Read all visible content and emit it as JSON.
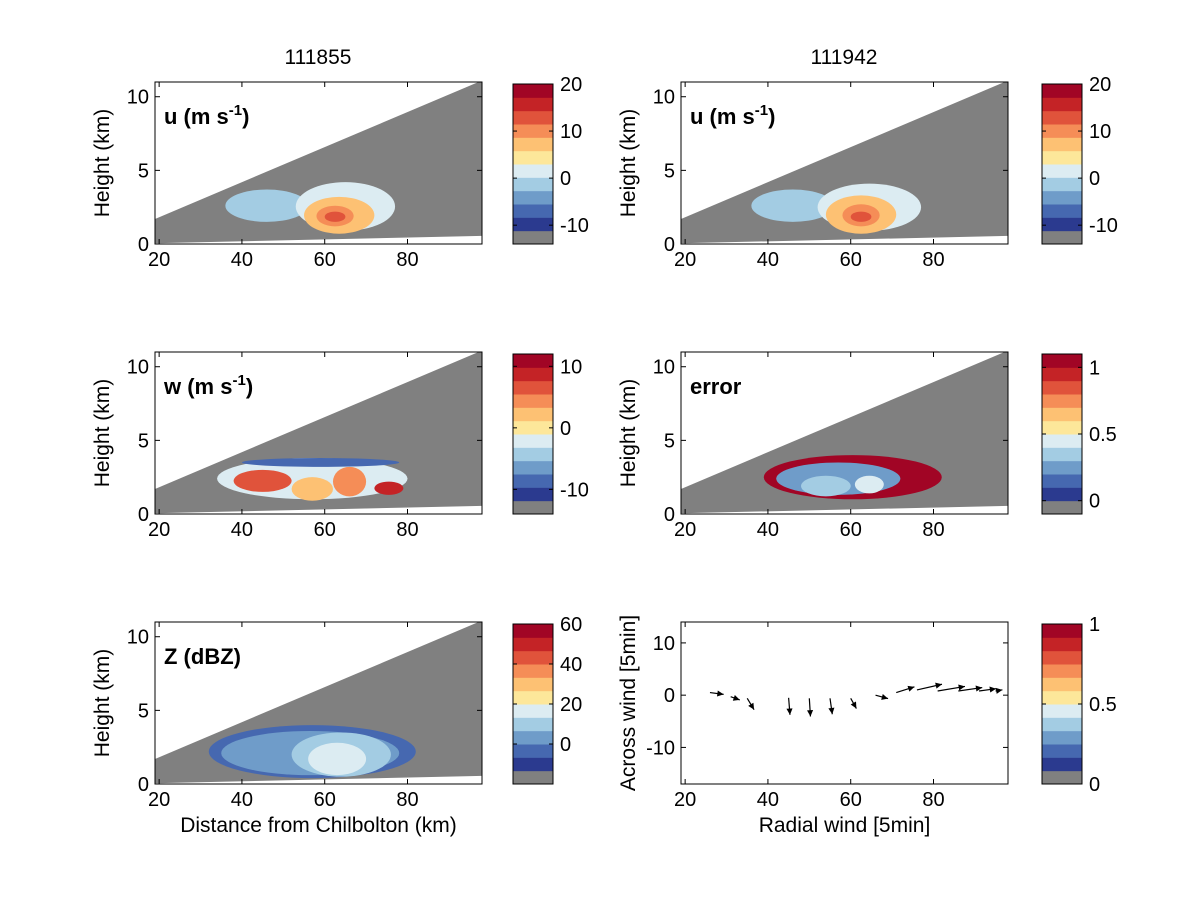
{
  "column_titles": [
    "111855",
    "111942"
  ],
  "colors": {
    "cmap": [
      "#808080",
      "#2b3a8f",
      "#4668b0",
      "#6f9cc9",
      "#a3cce3",
      "#dcecf2",
      "#fde79a",
      "#fdc173",
      "#f58d57",
      "#e0533b",
      "#c42326",
      "#a10525"
    ],
    "missing": "#808080"
  },
  "chart_data": [
    {
      "id": "u-111855",
      "type": "heatmap",
      "title": "111855",
      "label": "u (m s",
      "label_sup": "-1",
      "label_tail": ")",
      "ylabel": "Height (km)",
      "xlabel": "",
      "xticks": [
        "20",
        "40",
        "60",
        "80"
      ],
      "yticks": [
        "0",
        "5",
        "10"
      ],
      "xlim": [
        19,
        98
      ],
      "ylim": [
        0,
        11
      ],
      "colorbar": {
        "ticks": [
          "20",
          "10",
          "0",
          "-10"
        ],
        "range": [
          -14,
          20
        ]
      },
      "fields": [
        {
          "x": [
            36,
            56
          ],
          "y": [
            1.5,
            3.7
          ],
          "level": 4
        },
        {
          "x": [
            53,
            77
          ],
          "y": [
            0.9,
            4.2
          ],
          "level": 5
        },
        {
          "x": [
            55,
            72
          ],
          "y": [
            0.7,
            3.2
          ],
          "level": 7
        },
        {
          "x": [
            58,
            67
          ],
          "y": [
            1.2,
            2.6
          ],
          "level": 8
        },
        {
          "x": [
            60,
            65
          ],
          "y": [
            1.5,
            2.2
          ],
          "level": 9
        }
      ]
    },
    {
      "id": "u-111942",
      "type": "heatmap",
      "title": "111942",
      "label": "u (m s",
      "label_sup": "-1",
      "label_tail": ")",
      "ylabel": "Height (km)",
      "xlabel": "",
      "xticks": [
        "20",
        "40",
        "60",
        "80"
      ],
      "yticks": [
        "0",
        "5",
        "10"
      ],
      "xlim": [
        19,
        98
      ],
      "ylim": [
        0,
        11
      ],
      "colorbar": {
        "ticks": [
          "20",
          "10",
          "0",
          "-10"
        ],
        "range": [
          -14,
          20
        ]
      },
      "fields": [
        {
          "x": [
            36,
            56
          ],
          "y": [
            1.5,
            3.7
          ],
          "level": 4
        },
        {
          "x": [
            52,
            77
          ],
          "y": [
            0.9,
            4.1
          ],
          "level": 5
        },
        {
          "x": [
            54,
            71
          ],
          "y": [
            0.7,
            3.3
          ],
          "level": 7
        },
        {
          "x": [
            58,
            67
          ],
          "y": [
            1.2,
            2.7
          ],
          "level": 8
        },
        {
          "x": [
            60,
            65
          ],
          "y": [
            1.5,
            2.2
          ],
          "level": 9
        }
      ]
    },
    {
      "id": "w-111855",
      "type": "heatmap",
      "title": "",
      "label": "w (m s",
      "label_sup": "-1",
      "label_tail": ")",
      "ylabel": "Height (km)",
      "xlabel": "",
      "xticks": [
        "20",
        "40",
        "60",
        "80"
      ],
      "yticks": [
        "0",
        "5",
        "10"
      ],
      "xlim": [
        19,
        98
      ],
      "ylim": [
        0,
        11
      ],
      "colorbar": {
        "ticks": [
          "10",
          "0",
          "-10"
        ],
        "range": [
          -14,
          12
        ]
      },
      "fields": [
        {
          "x": [
            34,
            80
          ],
          "y": [
            1.0,
            3.8
          ],
          "level": 5
        },
        {
          "x": [
            38,
            52
          ],
          "y": [
            1.5,
            3.0
          ],
          "level": 9
        },
        {
          "x": [
            52,
            62
          ],
          "y": [
            0.9,
            2.5
          ],
          "level": 7
        },
        {
          "x": [
            62,
            70
          ],
          "y": [
            1.2,
            3.2
          ],
          "level": 8
        },
        {
          "x": [
            40,
            78
          ],
          "y": [
            3.2,
            3.8
          ],
          "level": 2
        },
        {
          "x": [
            72,
            79
          ],
          "y": [
            1.3,
            2.2
          ],
          "level": 10
        }
      ]
    },
    {
      "id": "error-111942",
      "type": "heatmap",
      "title": "",
      "label": "error",
      "label_sup": "",
      "label_tail": "",
      "ylabel": "Height (km)",
      "xlabel": "",
      "xticks": [
        "20",
        "40",
        "60",
        "80"
      ],
      "yticks": [
        "0",
        "5",
        "10"
      ],
      "xlim": [
        19,
        98
      ],
      "ylim": [
        0,
        11
      ],
      "colorbar": {
        "ticks": [
          "1",
          "0.5",
          "0"
        ],
        "range": [
          -0.1,
          1.1
        ]
      },
      "fields": [
        {
          "x": [
            39,
            82
          ],
          "y": [
            1.0,
            4.0
          ],
          "level": 11
        },
        {
          "x": [
            42,
            72
          ],
          "y": [
            1.3,
            3.5
          ],
          "level": 3
        },
        {
          "x": [
            48,
            60
          ],
          "y": [
            1.2,
            2.6
          ],
          "level": 4
        },
        {
          "x": [
            61,
            68
          ],
          "y": [
            1.4,
            2.6
          ],
          "level": 5
        }
      ]
    },
    {
      "id": "z-111855",
      "type": "heatmap",
      "title": "",
      "label": "Z (dBZ)",
      "label_sup": "",
      "label_tail": "",
      "ylabel": "Height (km)",
      "xlabel": "Distance from Chilbolton (km)",
      "xticks": [
        "20",
        "40",
        "60",
        "80"
      ],
      "yticks": [
        "0",
        "5",
        "10"
      ],
      "xlim": [
        19,
        98
      ],
      "ylim": [
        0,
        11
      ],
      "colorbar": {
        "ticks": [
          "60",
          "40",
          "20",
          "0"
        ],
        "range": [
          -20,
          60
        ]
      },
      "fields": [
        {
          "x": [
            32,
            82
          ],
          "y": [
            0.4,
            4.0
          ],
          "level": 2
        },
        {
          "x": [
            35,
            78
          ],
          "y": [
            0.6,
            3.6
          ],
          "level": 3
        },
        {
          "x": [
            52,
            76
          ],
          "y": [
            0.5,
            3.5
          ],
          "level": 4
        },
        {
          "x": [
            56,
            70
          ],
          "y": [
            0.6,
            2.8
          ],
          "level": 5
        }
      ]
    },
    {
      "id": "vectors",
      "type": "scatter",
      "title": "",
      "label": "",
      "label_sup": "",
      "label_tail": "",
      "ylabel": "Across wind [5min]",
      "xlabel": "Radial wind [5min]",
      "xticks": [
        "20",
        "40",
        "60",
        "80"
      ],
      "yticks": [
        "-10",
        "0",
        "10"
      ],
      "xlim": [
        19,
        98
      ],
      "ylim": [
        -17,
        14
      ],
      "colorbar": {
        "ticks": [
          "1",
          "0.5",
          "0"
        ],
        "range": [
          0,
          1
        ]
      },
      "arrows": [
        {
          "x": 26,
          "y": 0.5,
          "u": 6.0,
          "v": -0.8
        },
        {
          "x": 31,
          "y": -0.3,
          "u": 4.0,
          "v": -1.4
        },
        {
          "x": 35,
          "y": -0.6,
          "u": 3.0,
          "v": -5.0
        },
        {
          "x": 45,
          "y": -0.5,
          "u": 0.6,
          "v": -7.5
        },
        {
          "x": 50,
          "y": -0.6,
          "u": 0.5,
          "v": -8.0
        },
        {
          "x": 55,
          "y": -0.6,
          "u": 1.0,
          "v": -7.0
        },
        {
          "x": 60,
          "y": -0.6,
          "u": 2.5,
          "v": -4.5
        },
        {
          "x": 66,
          "y": 0.0,
          "u": 5.5,
          "v": -1.5
        },
        {
          "x": 71,
          "y": 0.5,
          "u": 8.0,
          "v": 2.5
        },
        {
          "x": 76,
          "y": 1.0,
          "u": 11.0,
          "v": 2.5
        },
        {
          "x": 81,
          "y": 0.8,
          "u": 12.0,
          "v": 2.0
        },
        {
          "x": 86,
          "y": 0.8,
          "u": 10.5,
          "v": 1.5
        },
        {
          "x": 91,
          "y": 0.8,
          "u": 7.5,
          "v": 1.0
        },
        {
          "x": 95,
          "y": 0.8,
          "u": 3.0,
          "v": 0.5
        }
      ]
    }
  ]
}
